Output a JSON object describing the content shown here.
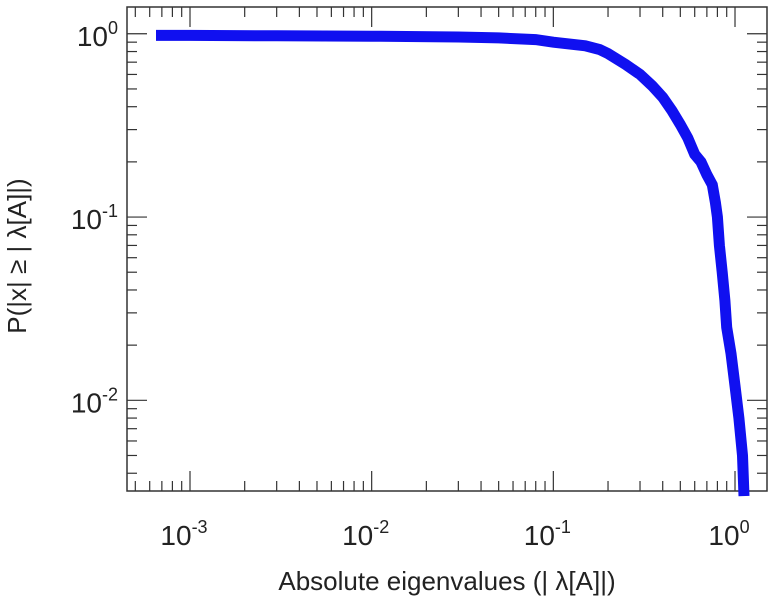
{
  "chart_data": {
    "type": "line",
    "xlabel": "Absolute eigenvalues (|     λ[A]|)",
    "ylabel": "P(|x|  ≥ | λ[A]|)",
    "xscale": "log",
    "yscale": "log",
    "xlim": [
      0.00045,
      1.5
    ],
    "ylim": [
      0.0032,
      1.4
    ],
    "x_ticks": [
      {
        "value": 0.001,
        "base": "10",
        "exp": "-3"
      },
      {
        "value": 0.01,
        "base": "10",
        "exp": "-2"
      },
      {
        "value": 0.1,
        "base": "10",
        "exp": "-1"
      },
      {
        "value": 1,
        "base": "10",
        "exp": "0"
      }
    ],
    "y_ticks": [
      {
        "value": 0.01,
        "base": "10",
        "exp": "-2"
      },
      {
        "value": 0.1,
        "base": "10",
        "exp": "-1"
      },
      {
        "value": 1,
        "base": "10",
        "exp": "0"
      }
    ],
    "grid": false,
    "series": [
      {
        "color": "#1010f0",
        "x": [
          0.00065,
          0.001,
          0.003,
          0.01,
          0.03,
          0.05,
          0.08,
          0.1,
          0.15,
          0.18,
          0.2,
          0.25,
          0.3,
          0.35,
          0.4,
          0.45,
          0.5,
          0.55,
          0.6,
          0.65,
          0.7,
          0.75,
          0.78,
          0.8,
          0.82,
          0.85,
          0.88,
          0.9,
          0.95,
          1.0,
          1.05,
          1.1,
          1.12
        ],
        "y": [
          0.98,
          0.98,
          0.975,
          0.97,
          0.96,
          0.95,
          0.93,
          0.9,
          0.86,
          0.82,
          0.78,
          0.68,
          0.6,
          0.52,
          0.45,
          0.38,
          0.32,
          0.27,
          0.22,
          0.2,
          0.17,
          0.15,
          0.12,
          0.1,
          0.07,
          0.05,
          0.035,
          0.025,
          0.018,
          0.012,
          0.008,
          0.005,
          0.003
        ]
      }
    ]
  }
}
